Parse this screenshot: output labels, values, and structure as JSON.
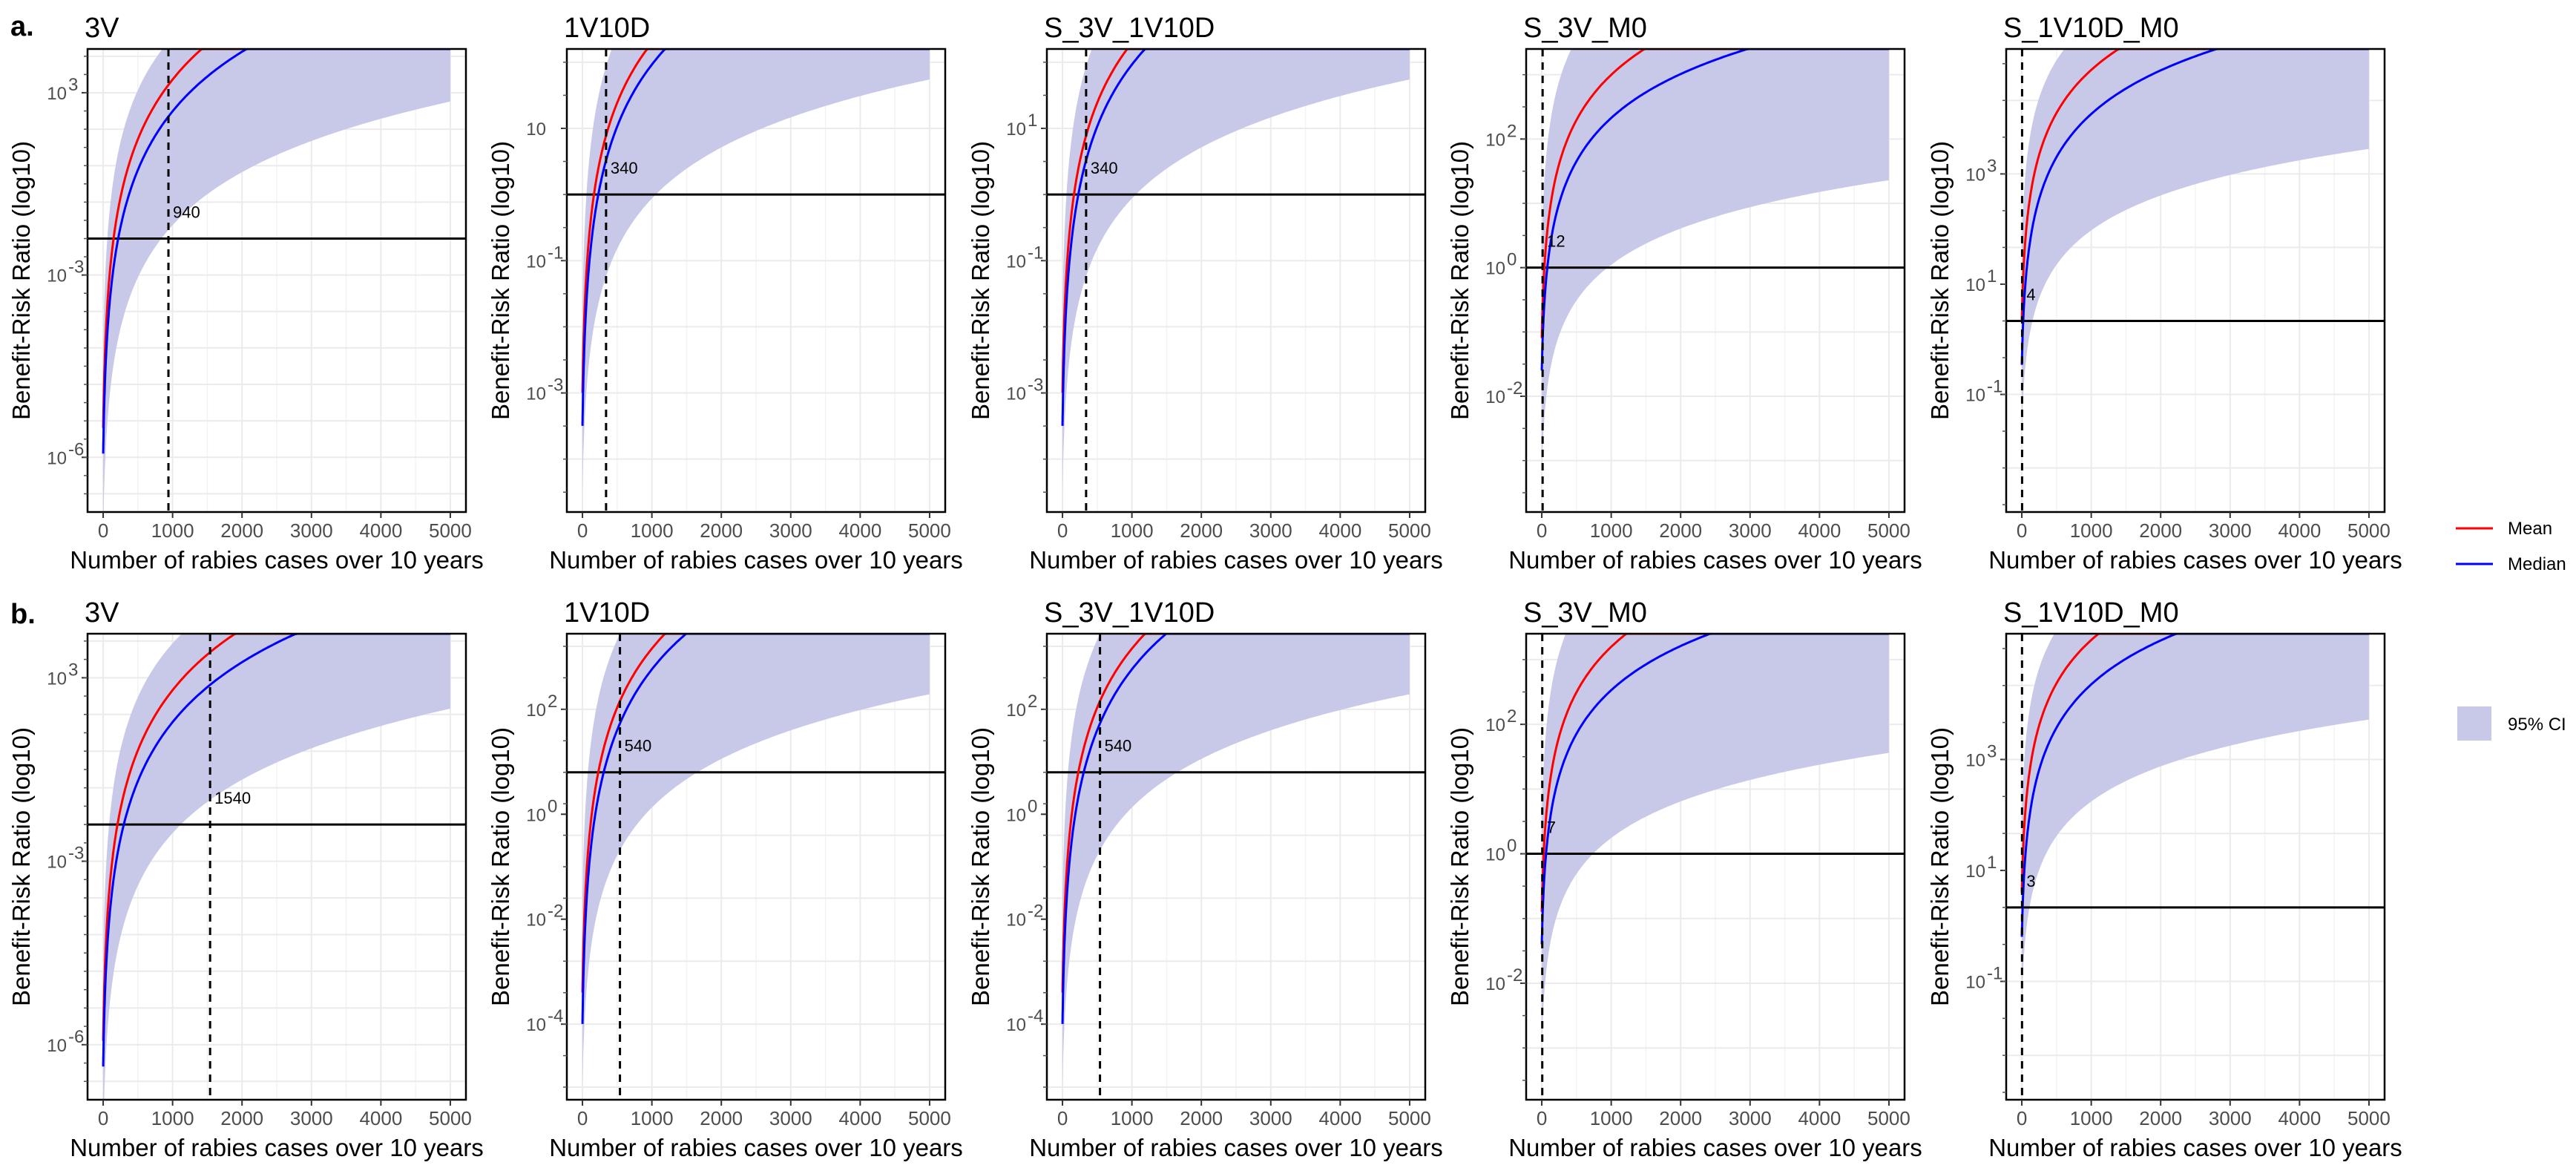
{
  "legend": {
    "lines": [
      {
        "label": "Mean",
        "color": "#ff0000"
      },
      {
        "label": "Median",
        "color": "#0000ff"
      }
    ],
    "band": {
      "label": "95% CI",
      "color": "#c8c8e8"
    }
  },
  "row_labels": [
    "a.",
    "b."
  ],
  "chart_data": [
    {
      "type": "line",
      "row": 0,
      "col": 0,
      "title": "3V",
      "xlabel": "Number of rabies cases over 10 years",
      "ylabel": "Benefit-Risk Ratio (log10)",
      "xlim": [
        0,
        5000
      ],
      "x_ticks": [
        0,
        1000,
        2000,
        3000,
        4000,
        5000
      ],
      "y_ticks": [
        {
          "label": "10",
          "exp": "3"
        },
        {
          "label": "10",
          "exp": "-3"
        },
        {
          "label": "10",
          "exp": "-6"
        }
      ],
      "ylim_log": [
        -7.5,
        5.2
      ],
      "reference_line": 0,
      "threshold": {
        "x": 940,
        "label": "940"
      },
      "series": [
        {
          "name": "Mean",
          "a": -5.2,
          "b": 5.6,
          "k": 0.05
        },
        {
          "name": "Median",
          "a": -5.9,
          "b": 5.5,
          "k": 0.05
        }
      ],
      "ci": {
        "a_lo": -8.0,
        "b_lo": 4.9,
        "a_hi": -3.0,
        "b_hi": 5.0,
        "k": 0.05
      }
    },
    {
      "type": "line",
      "row": 0,
      "col": 1,
      "title": "1V10D",
      "xlabel": "Number of rabies cases over 10 years",
      "ylabel": "Benefit-Risk Ratio (log10)",
      "xlim": [
        0,
        5000
      ],
      "x_ticks": [
        0,
        1000,
        2000,
        3000,
        4000,
        5000
      ],
      "y_ticks": [
        {
          "label": "10",
          "exp": ""
        },
        {
          "label": "10",
          "exp": "-1"
        },
        {
          "label": "10",
          "exp": "-3"
        }
      ],
      "ylim_log": [
        -4.8,
        2.2
      ],
      "reference_line": 0,
      "threshold": {
        "x": 340,
        "label": "340"
      },
      "series": [
        {
          "name": "Mean",
          "a": -3.0,
          "b": 3.1,
          "k": 0.05
        },
        {
          "name": "Median",
          "a": -3.5,
          "b": 3.2,
          "k": 0.05
        }
      ],
      "ci": {
        "a_lo": -4.5,
        "b_lo": 2.6,
        "a_hi": -1.7,
        "b_hi": 2.9,
        "k": 0.05
      }
    },
    {
      "type": "line",
      "row": 0,
      "col": 2,
      "title": "S_3V_1V10D",
      "xlabel": "Number of rabies cases over 10 years",
      "ylabel": "Benefit-Risk Ratio (log10)",
      "xlim": [
        0,
        5000
      ],
      "x_ticks": [
        0,
        1000,
        2000,
        3000,
        4000,
        5000
      ],
      "y_ticks": [
        {
          "label": "10",
          "exp": "1"
        },
        {
          "label": "10",
          "exp": "-1"
        },
        {
          "label": "10",
          "exp": "-3"
        }
      ],
      "ylim_log": [
        -4.8,
        2.2
      ],
      "reference_line": 0,
      "threshold": {
        "x": 340,
        "label": "340"
      },
      "series": [
        {
          "name": "Mean",
          "a": -3.0,
          "b": 3.1,
          "k": 0.05
        },
        {
          "name": "Median",
          "a": -3.5,
          "b": 3.2,
          "k": 0.05
        }
      ],
      "ci": {
        "a_lo": -4.5,
        "b_lo": 2.6,
        "a_hi": -1.7,
        "b_hi": 2.9,
        "k": 0.05
      }
    },
    {
      "type": "line",
      "row": 0,
      "col": 3,
      "title": "S_3V_M0",
      "xlabel": "Number of rabies cases over 10 years",
      "ylabel": "Benefit-Risk Ratio (log10)",
      "xlim": [
        0,
        5000
      ],
      "x_ticks": [
        0,
        1000,
        2000,
        3000,
        4000,
        5000
      ],
      "y_ticks": [
        {
          "label": "10",
          "exp": "2"
        },
        {
          "label": "10",
          "exp": "0"
        },
        {
          "label": "10",
          "exp": "-2"
        }
      ],
      "ylim_log": [
        -3.8,
        3.4
      ],
      "reference_line": 0,
      "threshold": {
        "x": 12,
        "label": "12"
      },
      "series": [
        {
          "name": "Mean",
          "a": -1.1,
          "b": 2.4,
          "k": 0.05
        },
        {
          "name": "Median",
          "a": -1.6,
          "b": 2.3,
          "k": 0.05
        }
      ],
      "ci": {
        "a_lo": -3.2,
        "b_lo": 1.9,
        "a_hi": 0.3,
        "b_hi": 2.3,
        "k": 0.05
      }
    },
    {
      "type": "line",
      "row": 0,
      "col": 4,
      "title": "S_1V10D_M0",
      "xlabel": "Number of rabies cases over 10 years",
      "ylabel": "Benefit-Risk Ratio (log10)",
      "xlim": [
        0,
        5000
      ],
      "x_ticks": [
        0,
        1000,
        2000,
        3000,
        4000,
        5000
      ],
      "y_ticks": [
        {
          "label": "10",
          "exp": "3"
        },
        {
          "label": "10",
          "exp": "1"
        },
        {
          "label": "10",
          "exp": "-1"
        }
      ],
      "ylim_log": [
        -2.6,
        3.7
      ],
      "reference_line": 0,
      "threshold": {
        "x": 4,
        "label": "4"
      },
      "series": [
        {
          "name": "Mean",
          "a": 0.0,
          "b": 2.0,
          "k": 0.05
        },
        {
          "name": "Median",
          "a": -0.6,
          "b": 2.0,
          "k": 0.05
        }
      ],
      "ci": {
        "a_lo": -1.5,
        "b_lo": 1.6,
        "a_hi": 1.0,
        "b_hi": 1.8,
        "k": 0.05
      }
    },
    {
      "type": "line",
      "row": 1,
      "col": 0,
      "title": "3V",
      "xlabel": "Number of rabies cases over 10 years",
      "ylabel": "Benefit-Risk Ratio (log10)",
      "xlim": [
        0,
        5000
      ],
      "x_ticks": [
        0,
        1000,
        2000,
        3000,
        4000,
        5000
      ],
      "y_ticks": [
        {
          "label": "10",
          "exp": "3"
        },
        {
          "label": "10",
          "exp": "-3"
        },
        {
          "label": "10",
          "exp": "-6"
        }
      ],
      "ylim_log": [
        -7.5,
        5.2
      ],
      "reference_line": 0,
      "threshold": {
        "x": 1540,
        "label": "1540"
      },
      "series": [
        {
          "name": "Mean",
          "a": -5.9,
          "b": 5.6,
          "k": 0.05
        },
        {
          "name": "Median",
          "a": -6.6,
          "b": 5.5,
          "k": 0.05
        }
      ],
      "ci": {
        "a_lo": -8.6,
        "b_lo": 4.9,
        "a_hi": -3.6,
        "b_hi": 5.0,
        "k": 0.05
      }
    },
    {
      "type": "line",
      "row": 1,
      "col": 1,
      "title": "1V10D",
      "xlabel": "Number of rabies cases over 10 years",
      "ylabel": "Benefit-Risk Ratio (log10)",
      "xlim": [
        0,
        5000
      ],
      "x_ticks": [
        0,
        1000,
        2000,
        3000,
        4000,
        5000
      ],
      "y_ticks": [
        {
          "label": "10",
          "exp": "2"
        },
        {
          "label": "10",
          "exp": "0"
        },
        {
          "label": "10",
          "exp": "-2"
        },
        {
          "label": "10",
          "exp": "-4"
        }
      ],
      "ylim_log": [
        -5.2,
        2.2
      ],
      "reference_line": 0,
      "threshold": {
        "x": 540,
        "label": "540"
      },
      "series": [
        {
          "name": "Mean",
          "a": -3.5,
          "b": 3.2,
          "k": 0.05
        },
        {
          "name": "Median",
          "a": -4.0,
          "b": 3.3,
          "k": 0.05
        }
      ],
      "ci": {
        "a_lo": -5.0,
        "b_lo": 2.6,
        "a_hi": -2.0,
        "b_hi": 2.9,
        "k": 0.05
      }
    },
    {
      "type": "line",
      "row": 1,
      "col": 2,
      "title": "S_3V_1V10D",
      "xlabel": "Number of rabies cases over 10 years",
      "ylabel": "Benefit-Risk Ratio (log10)",
      "xlim": [
        0,
        5000
      ],
      "x_ticks": [
        0,
        1000,
        2000,
        3000,
        4000,
        5000
      ],
      "y_ticks": [
        {
          "label": "10",
          "exp": "2"
        },
        {
          "label": "10",
          "exp": "0"
        },
        {
          "label": "10",
          "exp": "-2"
        },
        {
          "label": "10",
          "exp": "-4"
        }
      ],
      "ylim_log": [
        -5.2,
        2.2
      ],
      "reference_line": 0,
      "threshold": {
        "x": 540,
        "label": "540"
      },
      "series": [
        {
          "name": "Mean",
          "a": -3.5,
          "b": 3.2,
          "k": 0.05
        },
        {
          "name": "Median",
          "a": -4.0,
          "b": 3.3,
          "k": 0.05
        }
      ],
      "ci": {
        "a_lo": -5.0,
        "b_lo": 2.6,
        "a_hi": -2.0,
        "b_hi": 2.9,
        "k": 0.05
      }
    },
    {
      "type": "line",
      "row": 1,
      "col": 3,
      "title": "S_3V_M0",
      "xlabel": "Number of rabies cases over 10 years",
      "ylabel": "Benefit-Risk Ratio (log10)",
      "xlim": [
        0,
        5000
      ],
      "x_ticks": [
        0,
        1000,
        2000,
        3000,
        4000,
        5000
      ],
      "y_ticks": [
        {
          "label": "10",
          "exp": "2"
        },
        {
          "label": "10",
          "exp": "0"
        },
        {
          "label": "10",
          "exp": "-2"
        }
      ],
      "ylim_log": [
        -3.8,
        3.4
      ],
      "reference_line": 0,
      "threshold": {
        "x": 7,
        "label": "7"
      },
      "series": [
        {
          "name": "Mean",
          "a": -0.9,
          "b": 2.4,
          "k": 0.05
        },
        {
          "name": "Median",
          "a": -1.4,
          "b": 2.3,
          "k": 0.05
        }
      ],
      "ci": {
        "a_lo": -3.0,
        "b_lo": 1.9,
        "a_hi": 0.5,
        "b_hi": 2.3,
        "k": 0.05
      }
    },
    {
      "type": "line",
      "row": 1,
      "col": 4,
      "title": "S_1V10D_M0",
      "xlabel": "Number of rabies cases over 10 years",
      "ylabel": "Benefit-Risk Ratio (log10)",
      "xlim": [
        0,
        5000
      ],
      "x_ticks": [
        0,
        1000,
        2000,
        3000,
        4000,
        5000
      ],
      "y_ticks": [
        {
          "label": "10",
          "exp": "3"
        },
        {
          "label": "10",
          "exp": "1"
        },
        {
          "label": "10",
          "exp": "-1"
        }
      ],
      "ylim_log": [
        -2.6,
        3.7
      ],
      "reference_line": 0,
      "threshold": {
        "x": 3,
        "label": "3"
      },
      "series": [
        {
          "name": "Mean",
          "a": 0.2,
          "b": 2.0,
          "k": 0.05
        },
        {
          "name": "Median",
          "a": -0.4,
          "b": 2.0,
          "k": 0.05
        }
      ],
      "ci": {
        "a_lo": -1.3,
        "b_lo": 1.6,
        "a_hi": 1.2,
        "b_hi": 1.8,
        "k": 0.05
      }
    }
  ]
}
